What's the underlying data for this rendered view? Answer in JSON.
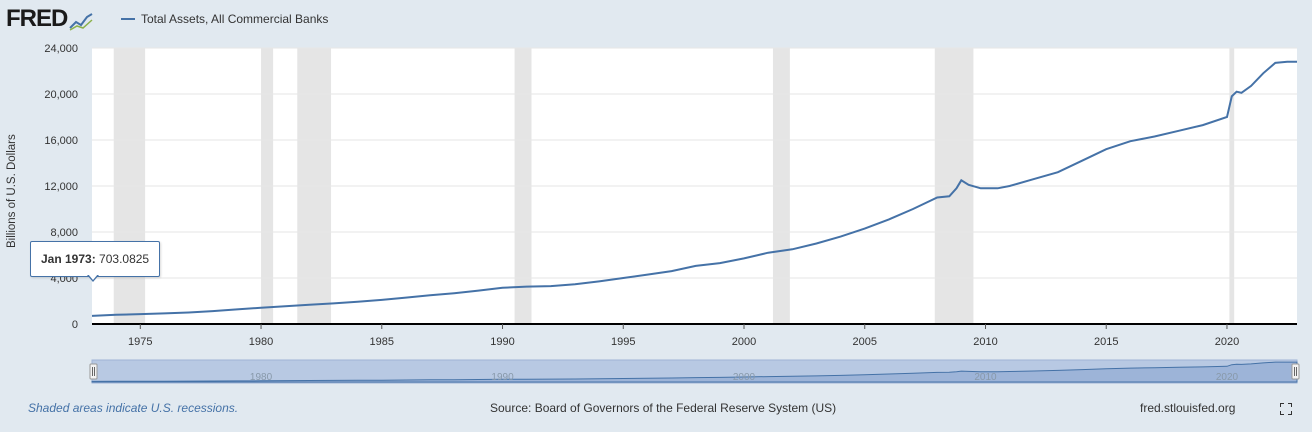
{
  "header": {
    "logo_text": "FRED",
    "legend_label": "Total Assets, All Commercial Banks"
  },
  "tooltip": {
    "date": "Jan 1973:",
    "value": "703.0825"
  },
  "footer": {
    "recession_note": "Shaded areas indicate U.S. recessions.",
    "source": "Source: Board of Governors of the Federal Reserve System (US)",
    "site": "fred.stlouisfed.org"
  },
  "icons": {
    "fullscreen": "fullscreen-icon",
    "logo_graph": "line-graph-icon"
  },
  "colors": {
    "series": "#4572a7",
    "background": "#e1e9f0",
    "recession": "#e5e5e5",
    "navigator_fill": "#b8c9e3"
  },
  "chart_data": {
    "type": "line",
    "title": "",
    "xlabel": "",
    "ylabel": "Billions of U.S. Dollars",
    "xlim": [
      1973.0,
      2022.9
    ],
    "ylim": [
      0,
      24000
    ],
    "yticks": [
      0,
      4000,
      8000,
      12000,
      16000,
      20000,
      24000
    ],
    "ytick_labels": [
      "0",
      "4,000",
      "8,000",
      "12,000",
      "16,000",
      "20,000",
      "24,000"
    ],
    "xticks": [
      "1975",
      "1980",
      "1985",
      "1990",
      "1995",
      "2000",
      "2005",
      "2010",
      "2015",
      "2020"
    ],
    "navigator_ticks": [
      "1980",
      "1990",
      "2000",
      "2010",
      "2020"
    ],
    "grid": true,
    "recessions": [
      [
        1973.9,
        1975.2
      ],
      [
        1980.0,
        1980.5
      ],
      [
        1981.5,
        1982.9
      ],
      [
        1990.5,
        1991.2
      ],
      [
        2001.2,
        2001.9
      ],
      [
        2007.9,
        2009.5
      ],
      [
        2020.1,
        2020.3
      ]
    ],
    "series": [
      {
        "name": "Total Assets, All Commercial Banks",
        "points": [
          [
            1973.0,
            703
          ],
          [
            1974.0,
            800
          ],
          [
            1975.0,
            860
          ],
          [
            1976.0,
            920
          ],
          [
            1977.0,
            1000
          ],
          [
            1978.0,
            1120
          ],
          [
            1979.0,
            1270
          ],
          [
            1980.0,
            1420
          ],
          [
            1981.0,
            1550
          ],
          [
            1982.0,
            1680
          ],
          [
            1983.0,
            1790
          ],
          [
            1984.0,
            1930
          ],
          [
            1985.0,
            2100
          ],
          [
            1986.0,
            2300
          ],
          [
            1987.0,
            2500
          ],
          [
            1988.0,
            2680
          ],
          [
            1989.0,
            2900
          ],
          [
            1990.0,
            3150
          ],
          [
            1991.0,
            3250
          ],
          [
            1992.0,
            3300
          ],
          [
            1993.0,
            3450
          ],
          [
            1994.0,
            3700
          ],
          [
            1995.0,
            4000
          ],
          [
            1996.0,
            4300
          ],
          [
            1997.0,
            4600
          ],
          [
            1998.0,
            5050
          ],
          [
            1999.0,
            5300
          ],
          [
            2000.0,
            5700
          ],
          [
            2001.0,
            6200
          ],
          [
            2002.0,
            6500
          ],
          [
            2003.0,
            7000
          ],
          [
            2004.0,
            7600
          ],
          [
            2005.0,
            8300
          ],
          [
            2006.0,
            9100
          ],
          [
            2007.0,
            10000
          ],
          [
            2008.0,
            11000
          ],
          [
            2008.5,
            11100
          ],
          [
            2008.8,
            11800
          ],
          [
            2009.0,
            12500
          ],
          [
            2009.3,
            12100
          ],
          [
            2009.8,
            11800
          ],
          [
            2010.5,
            11800
          ],
          [
            2011.0,
            12000
          ],
          [
            2012.0,
            12600
          ],
          [
            2013.0,
            13200
          ],
          [
            2014.0,
            14200
          ],
          [
            2015.0,
            15200
          ],
          [
            2016.0,
            15900
          ],
          [
            2017.0,
            16300
          ],
          [
            2018.0,
            16800
          ],
          [
            2019.0,
            17300
          ],
          [
            2020.0,
            18000
          ],
          [
            2020.2,
            19800
          ],
          [
            2020.4,
            20200
          ],
          [
            2020.6,
            20100
          ],
          [
            2021.0,
            20700
          ],
          [
            2021.5,
            21800
          ],
          [
            2022.0,
            22700
          ],
          [
            2022.5,
            22800
          ],
          [
            2022.9,
            22800
          ]
        ]
      }
    ]
  }
}
